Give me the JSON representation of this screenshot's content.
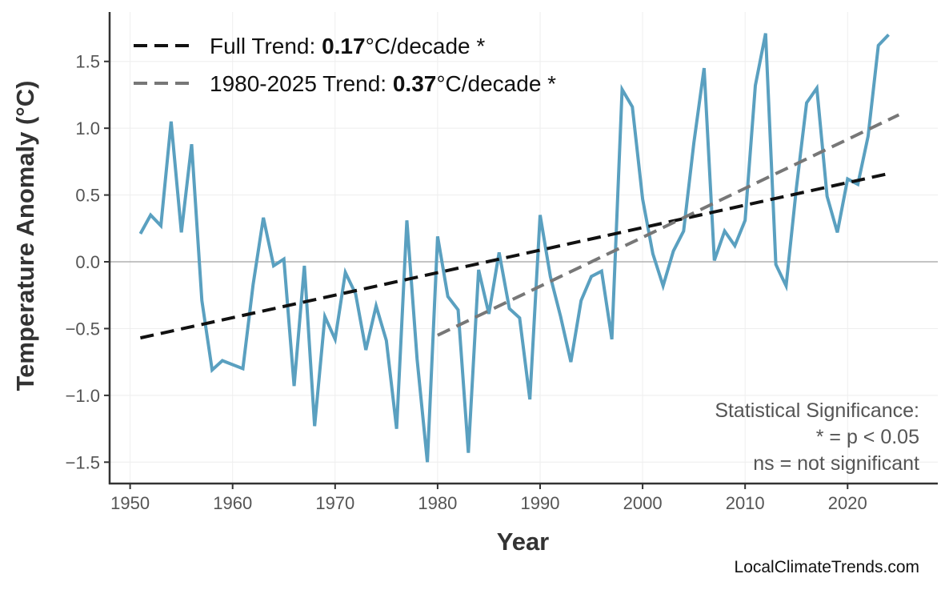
{
  "chart_data": {
    "type": "line",
    "title": "",
    "xlabel": "Year",
    "ylabel": "Temperature Anomaly (°C)",
    "xlim": [
      1948,
      2028.8
    ],
    "ylim": [
      -1.66,
      1.87
    ],
    "xticks": [
      1950,
      1960,
      1970,
      1980,
      1990,
      2000,
      2010,
      2020
    ],
    "yticks": [
      -1.5,
      -1.0,
      -0.5,
      0.0,
      0.5,
      1.0,
      1.5
    ],
    "ytick_labels": [
      "−1.5",
      "−1.0",
      "−0.5",
      "0.0",
      "0.5",
      "1.0",
      "1.5"
    ],
    "grid": true,
    "zero_line": true,
    "series": [
      {
        "color": "#5aa0c0",
        "x": [
          1951,
          1952,
          1953,
          1954,
          1955,
          1956,
          1957,
          1958,
          1959,
          1960,
          1961,
          1962,
          1963,
          1964,
          1965,
          1966,
          1967,
          1968,
          1969,
          1970,
          1971,
          1972,
          1973,
          1974,
          1975,
          1976,
          1977,
          1978,
          1979,
          1980,
          1981,
          1982,
          1983,
          1984,
          1985,
          1986,
          1987,
          1988,
          1989,
          1990,
          1991,
          1992,
          1993,
          1994,
          1995,
          1996,
          1997,
          1998,
          1999,
          2000,
          2001,
          2002,
          2003,
          2004,
          2005,
          2006,
          2007,
          2008,
          2009,
          2010,
          2011,
          2012,
          2013,
          2014,
          2015,
          2016,
          2017,
          2018,
          2019,
          2020,
          2021,
          2022,
          2023,
          2024
        ],
        "values": [
          0.21,
          0.35,
          0.27,
          1.05,
          0.22,
          0.88,
          -0.29,
          -0.81,
          -0.74,
          -0.77,
          -0.8,
          -0.17,
          0.33,
          -0.03,
          0.02,
          -0.93,
          -0.03,
          -1.23,
          -0.41,
          -0.58,
          -0.08,
          -0.24,
          -0.66,
          -0.33,
          -0.59,
          -1.25,
          0.31,
          -0.73,
          -1.5,
          0.19,
          -0.26,
          -0.36,
          -1.43,
          -0.06,
          -0.39,
          0.07,
          -0.35,
          -0.42,
          -1.03,
          0.35,
          -0.11,
          -0.41,
          -0.75,
          -0.29,
          -0.11,
          -0.07,
          -0.58,
          1.29,
          1.16,
          0.47,
          0.06,
          -0.18,
          0.08,
          0.23,
          0.89,
          1.45,
          0.01,
          0.23,
          0.12,
          0.31,
          1.32,
          1.71,
          -0.02,
          -0.18,
          0.55,
          1.19,
          1.3,
          0.49,
          0.22,
          0.62,
          0.58,
          0.94,
          1.62,
          1.7
        ]
      }
    ],
    "trends": [
      {
        "name": "Full Trend",
        "x": [
          1951,
          2024
        ],
        "y": [
          -0.57,
          0.66
        ],
        "color": "#111111",
        "rate_prefix": "Full Trend: ",
        "rate": "0.17",
        "rate_suffix": "°C/decade *"
      },
      {
        "name": "1980-2025 Trend",
        "x": [
          1980,
          2025
        ],
        "y": [
          -0.55,
          1.1
        ],
        "color": "#777777",
        "rate_prefix": "1980-2025 Trend: ",
        "rate": "0.37",
        "rate_suffix": "°C/decade *"
      }
    ],
    "legend_placement": "top-left",
    "annotation": [
      "Statistical Significance:",
      "* = p < 0.05",
      "ns = not significant"
    ]
  },
  "watermark": "LocalClimateTrends.com"
}
